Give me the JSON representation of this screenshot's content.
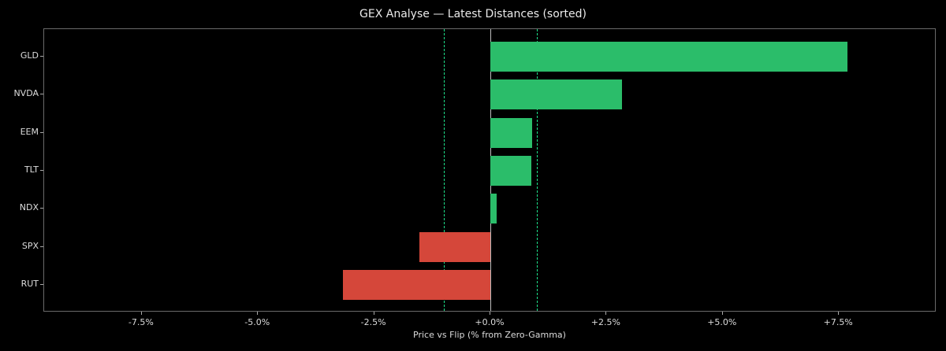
{
  "chart_data": {
    "type": "bar",
    "orientation": "horizontal",
    "title": "GEX Analyse — Latest Distances (sorted)",
    "xlabel": "Price vs Flip (% from Zero-Gamma)",
    "ylabel": "",
    "categories": [
      "GLD",
      "NVDA",
      "EEM",
      "TLT",
      "NDX",
      "SPX",
      "RUT"
    ],
    "values": [
      7.68,
      2.83,
      0.9,
      0.88,
      0.14,
      -1.53,
      -3.17
    ],
    "colors": [
      "#2bbd6a",
      "#2bbd6a",
      "#2bbd6a",
      "#2bbd6a",
      "#2bbd6a",
      "#d5473a",
      "#d5473a"
    ],
    "xlim": [
      -9.6,
      9.6
    ],
    "xticks": [
      -7.5,
      -5.0,
      -2.5,
      0.0,
      2.5,
      5.0,
      7.5
    ],
    "xtick_labels": [
      "-7.5%",
      "-5.0%",
      "-2.5%",
      "+0.0%",
      "+2.5%",
      "+5.0%",
      "+7.5%"
    ],
    "reference_lines": [
      {
        "x": 0.0,
        "style": "solid",
        "color": "#bdbdbd"
      },
      {
        "x": -1.0,
        "style": "dashed",
        "color": "#1ee08a"
      },
      {
        "x": 1.0,
        "style": "dashed",
        "color": "#1ee08a"
      }
    ],
    "grid": false,
    "legend": null,
    "background": "#000000"
  },
  "labels": {
    "title": "GEX Analyse — Latest Distances (sorted)",
    "xaxis": "Price vs Flip (% from Zero-Gamma)"
  }
}
